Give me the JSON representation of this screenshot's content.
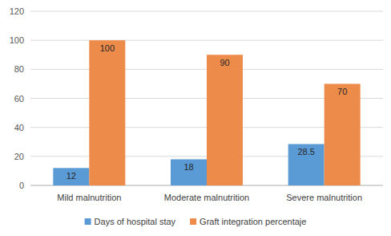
{
  "chart_data": {
    "type": "bar",
    "categories": [
      "Mild malnutrition",
      "Moderate malnutrition",
      "Severe malnutrition"
    ],
    "series": [
      {
        "name": "Days of hospital stay",
        "color": "#5b9bd5",
        "values": [
          12,
          18,
          28.5
        ]
      },
      {
        "name": "Graft integration percentaje",
        "color": "#ed8b4a",
        "values": [
          100,
          90,
          70
        ]
      }
    ],
    "ylim": [
      0,
      120
    ],
    "yticks": [
      0,
      20,
      40,
      60,
      80,
      100,
      120
    ],
    "grid": true,
    "data_labels": true,
    "legend": "bottom"
  }
}
